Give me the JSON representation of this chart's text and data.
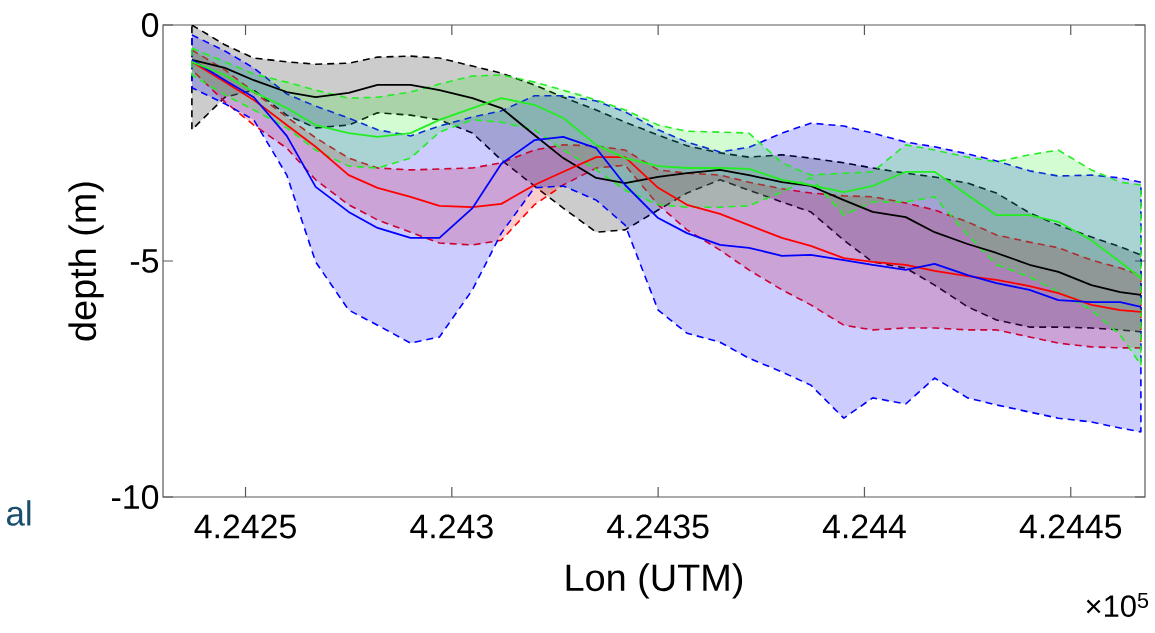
{
  "chart_data": {
    "type": "line",
    "xlabel": "Lon (UTM)",
    "ylabel": "depth (m)",
    "annotations": [
      "al",
      "×10$^{5}$"
    ],
    "xlim": [
      4.2423,
      4.24468
    ],
    "ylim": [
      -10,
      0
    ],
    "xticks": [
      4.2425,
      4.243,
      4.2435,
      4.244,
      4.2445
    ],
    "yticks": [
      -10,
      -5,
      0
    ],
    "x": [
      4.24237,
      4.24245,
      4.24252,
      4.2426,
      4.24267,
      4.24275,
      4.24282,
      4.2429,
      4.24297,
      4.24305,
      4.24312,
      4.2432,
      4.24327,
      4.24335,
      4.24342,
      4.2435,
      4.24357,
      4.24365,
      4.24372,
      4.2438,
      4.24387,
      4.24395,
      4.24402,
      4.2441,
      4.24417,
      4.24425,
      4.24432,
      4.2444,
      4.24447,
      4.24455,
      4.24462,
      4.24467
    ],
    "series": [
      {
        "color": "#000000",
        "values": [
          -0.74,
          -0.91,
          -1.17,
          -1.42,
          -1.53,
          -1.44,
          -1.27,
          -1.27,
          -1.38,
          -1.55,
          -1.76,
          -2.33,
          -2.82,
          -3.24,
          -3.35,
          -3.22,
          -3.14,
          -3.07,
          -3.18,
          -3.33,
          -3.41,
          -3.71,
          -3.96,
          -4.07,
          -4.39,
          -4.64,
          -4.83,
          -5.08,
          -5.23,
          -5.51,
          -5.66,
          -5.72
        ],
        "upper": [
          0,
          -0.42,
          -0.7,
          -0.78,
          -0.83,
          -0.81,
          -0.68,
          -0.66,
          -0.7,
          -0.87,
          -1.02,
          -1.27,
          -1.53,
          -1.8,
          -2.06,
          -2.33,
          -2.56,
          -2.71,
          -2.8,
          -2.75,
          -2.82,
          -2.92,
          -3.03,
          -3.14,
          -3.22,
          -3.35,
          -3.56,
          -3.98,
          -4.24,
          -4.49,
          -4.7,
          -4.87
        ],
        "lower": [
          -2.22,
          -1.53,
          -1.38,
          -1.91,
          -2.18,
          -2.12,
          -1.86,
          -1.91,
          -2.01,
          -2.29,
          -2.86,
          -3.41,
          -3.88,
          -4.39,
          -4.34,
          -3.92,
          -3.56,
          -3.28,
          -3.5,
          -3.75,
          -3.96,
          -4.56,
          -5.02,
          -5.15,
          -5.51,
          -5.97,
          -6.25,
          -6.4,
          -6.4,
          -6.42,
          -6.46,
          -6.5
        ]
      },
      {
        "color": "#ff0000",
        "values": [
          -0.78,
          -1.21,
          -1.59,
          -2.12,
          -2.58,
          -3.18,
          -3.45,
          -3.64,
          -3.83,
          -3.86,
          -3.79,
          -3.39,
          -3.11,
          -2.8,
          -2.8,
          -3.45,
          -3.81,
          -4.0,
          -4.24,
          -4.51,
          -4.68,
          -4.94,
          -5.02,
          -5.08,
          -5.21,
          -5.32,
          -5.4,
          -5.53,
          -5.68,
          -5.93,
          -6.04,
          -6.08
        ],
        "upper": [
          -0.53,
          -0.95,
          -1.42,
          -1.95,
          -2.39,
          -2.82,
          -3.03,
          -3.07,
          -3.05,
          -3.03,
          -2.92,
          -2.65,
          -2.54,
          -2.56,
          -2.65,
          -3.07,
          -3.14,
          -3.18,
          -3.33,
          -3.47,
          -3.56,
          -3.62,
          -3.64,
          -3.77,
          -3.92,
          -4.17,
          -4.45,
          -4.6,
          -4.72,
          -4.98,
          -5.15,
          -5.3
        ],
        "lower": [
          -0.95,
          -1.63,
          -2.12,
          -2.61,
          -3.28,
          -3.81,
          -4.13,
          -4.39,
          -4.62,
          -4.66,
          -4.56,
          -3.81,
          -3.39,
          -3.03,
          -2.97,
          -3.81,
          -4.34,
          -4.77,
          -5.19,
          -5.61,
          -5.93,
          -6.36,
          -6.46,
          -6.42,
          -6.42,
          -6.46,
          -6.46,
          -6.61,
          -6.74,
          -6.82,
          -6.84,
          -6.84
        ]
      },
      {
        "color": "#0000ff",
        "values": [
          -0.74,
          -1.17,
          -1.53,
          -2.35,
          -3.43,
          -3.96,
          -4.3,
          -4.51,
          -4.51,
          -3.88,
          -2.94,
          -2.44,
          -2.37,
          -2.61,
          -3.39,
          -4.09,
          -4.41,
          -4.66,
          -4.72,
          -4.89,
          -4.87,
          -4.98,
          -5.08,
          -5.19,
          -5.06,
          -5.3,
          -5.47,
          -5.61,
          -5.83,
          -5.87,
          -5.87,
          -5.97
        ],
        "upper": [
          -0.21,
          -0.55,
          -0.91,
          -1.46,
          -1.72,
          -1.97,
          -2.22,
          -2.35,
          -2.14,
          -1.95,
          -1.82,
          -1.5,
          -1.5,
          -1.61,
          -1.84,
          -2.22,
          -2.48,
          -2.69,
          -2.59,
          -2.29,
          -2.08,
          -2.14,
          -2.29,
          -2.48,
          -2.58,
          -2.73,
          -2.88,
          -3.09,
          -3.2,
          -3.18,
          -3.24,
          -3.33
        ],
        "lower": [
          -1.33,
          -1.67,
          -2.01,
          -3.18,
          -5.02,
          -6.04,
          -6.36,
          -6.74,
          -6.61,
          -5.61,
          -4.41,
          -3.45,
          -3.41,
          -3.71,
          -4.24,
          -6.04,
          -6.53,
          -6.72,
          -7.06,
          -7.35,
          -7.63,
          -8.33,
          -7.9,
          -8.03,
          -7.48,
          -7.9,
          -8.05,
          -8.2,
          -8.33,
          -8.41,
          -8.54,
          -8.62
        ]
      },
      {
        "color": "#22ee22",
        "values": [
          -0.78,
          -1.06,
          -1.42,
          -1.76,
          -2.12,
          -2.29,
          -2.37,
          -2.29,
          -2.01,
          -1.76,
          -1.55,
          -1.69,
          -1.97,
          -2.54,
          -2.82,
          -2.99,
          -3.03,
          -3.03,
          -3.05,
          -3.28,
          -3.39,
          -3.54,
          -3.41,
          -3.11,
          -3.11,
          -3.6,
          -4.03,
          -4.03,
          -4.17,
          -4.56,
          -5.02,
          -5.36
        ],
        "upper": [
          -0.49,
          -0.78,
          -1.04,
          -1.21,
          -1.38,
          -1.55,
          -1.53,
          -1.42,
          -1.25,
          -1.08,
          -1.06,
          -1.21,
          -1.38,
          -1.59,
          -1.8,
          -2.12,
          -2.25,
          -2.27,
          -2.29,
          -2.92,
          -3.18,
          -3.14,
          -3.11,
          -2.54,
          -2.65,
          -2.8,
          -2.9,
          -2.75,
          -2.65,
          -3.07,
          -3.33,
          -3.39
        ],
        "lower": [
          -1.06,
          -1.48,
          -1.8,
          -2.18,
          -2.65,
          -2.99,
          -3.03,
          -2.82,
          -2.27,
          -2.01,
          -2.06,
          -2.22,
          -2.65,
          -3.07,
          -3.5,
          -3.81,
          -3.86,
          -3.86,
          -3.83,
          -3.54,
          -3.24,
          -4.03,
          -3.75,
          -3.75,
          -3.64,
          -4.45,
          -5.08,
          -5.34,
          -5.66,
          -6.04,
          -6.57,
          -7.2
        ]
      }
    ]
  }
}
